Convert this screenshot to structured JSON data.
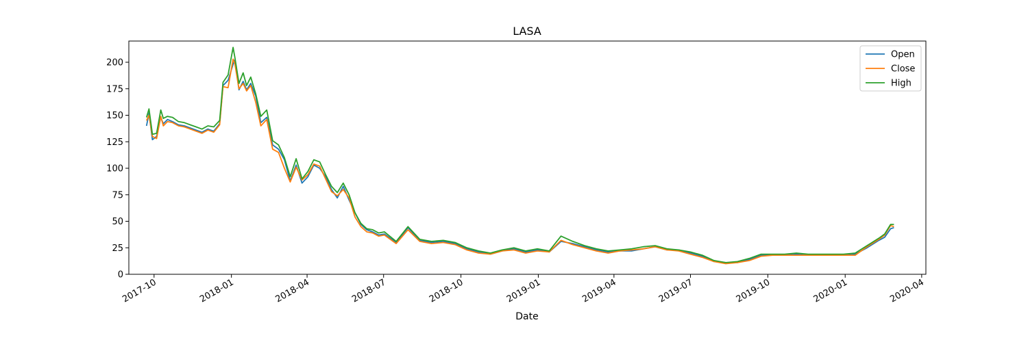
{
  "chart_data": {
    "type": "line",
    "title": "LASA",
    "xlabel": "Date",
    "ylabel": "",
    "xlim": [
      "2017-09-01",
      "2020-04-06"
    ],
    "ylim": [
      0,
      220
    ],
    "x_ticks": [
      "2017-10",
      "2018-01",
      "2018-04",
      "2018-07",
      "2018-10",
      "2019-01",
      "2019-04",
      "2019-07",
      "2019-10",
      "2020-01",
      "2020-04"
    ],
    "y_ticks": [
      0,
      25,
      50,
      75,
      100,
      125,
      150,
      175,
      200
    ],
    "grid": false,
    "legend": {
      "position": "top-right"
    },
    "x": [
      "2017-09-22",
      "2017-09-25",
      "2017-09-29",
      "2017-10-04",
      "2017-10-09",
      "2017-10-12",
      "2017-10-17",
      "2017-10-23",
      "2017-10-30",
      "2017-11-06",
      "2017-11-13",
      "2017-11-20",
      "2017-11-27",
      "2017-12-04",
      "2017-12-11",
      "2017-12-18",
      "2017-12-22",
      "2017-12-28",
      "2018-01-03",
      "2018-01-05",
      "2018-01-10",
      "2018-01-15",
      "2018-01-19",
      "2018-01-24",
      "2018-01-30",
      "2018-02-05",
      "2018-02-12",
      "2018-02-19",
      "2018-02-26",
      "2018-03-05",
      "2018-03-12",
      "2018-03-19",
      "2018-03-26",
      "2018-04-02",
      "2018-04-09",
      "2018-04-16",
      "2018-04-23",
      "2018-04-30",
      "2018-05-07",
      "2018-05-14",
      "2018-05-21",
      "2018-05-28",
      "2018-06-04",
      "2018-06-11",
      "2018-06-18",
      "2018-06-25",
      "2018-07-02",
      "2018-07-16",
      "2018-07-30",
      "2018-08-13",
      "2018-08-27",
      "2018-09-10",
      "2018-09-24",
      "2018-10-08",
      "2018-10-22",
      "2018-11-05",
      "2018-11-19",
      "2018-12-03",
      "2018-12-17",
      "2018-12-31",
      "2019-01-14",
      "2019-01-28",
      "2019-02-11",
      "2019-02-25",
      "2019-03-11",
      "2019-03-25",
      "2019-04-08",
      "2019-04-22",
      "2019-05-06",
      "2019-05-20",
      "2019-06-03",
      "2019-06-17",
      "2019-07-01",
      "2019-07-15",
      "2019-07-29",
      "2019-08-12",
      "2019-08-26",
      "2019-09-09",
      "2019-09-23",
      "2019-10-07",
      "2019-10-21",
      "2019-11-04",
      "2019-11-18",
      "2019-12-02",
      "2019-12-16",
      "2019-12-30",
      "2020-01-13",
      "2020-01-27",
      "2020-02-10",
      "2020-02-17",
      "2020-02-24",
      "2020-02-28"
    ],
    "series": [
      {
        "name": "Open",
        "color": "#1f77b4",
        "values": [
          140,
          152,
          127,
          130,
          148,
          142,
          146,
          144,
          141,
          140,
          138,
          136,
          134,
          137,
          135,
          142,
          178,
          183,
          198,
          202,
          174,
          182,
          174,
          180,
          168,
          143,
          148,
          122,
          118,
          108,
          88,
          103,
          86,
          92,
          103,
          100,
          92,
          80,
          72,
          83,
          70,
          58,
          47,
          42,
          40,
          37,
          38,
          30,
          44,
          32,
          30,
          31,
          29,
          24,
          21,
          19,
          22,
          24,
          21,
          23,
          21,
          31,
          29,
          26,
          23,
          21,
          22,
          22,
          24,
          26,
          23,
          23,
          20,
          17,
          12,
          11,
          11,
          14,
          18,
          18,
          18,
          19,
          18,
          18,
          18,
          18,
          19,
          25,
          32,
          35,
          43,
          44
        ]
      },
      {
        "name": "Close",
        "color": "#ff7f0e",
        "values": [
          145,
          150,
          130,
          128,
          149,
          140,
          144,
          143,
          140,
          139,
          137,
          135,
          133,
          136,
          134,
          141,
          177,
          176,
          203,
          199,
          175,
          180,
          173,
          178,
          162,
          140,
          146,
          118,
          115,
          100,
          87,
          101,
          89,
          94,
          104,
          102,
          90,
          78,
          74,
          80,
          72,
          54,
          45,
          40,
          39,
          36,
          37,
          29,
          42,
          31,
          29,
          30,
          28,
          23,
          20,
          19,
          22,
          23,
          20,
          22,
          21,
          32,
          28,
          25,
          22,
          20,
          22,
          23,
          24,
          26,
          23,
          22,
          19,
          16,
          12,
          10,
          11,
          13,
          17,
          18,
          18,
          18,
          18,
          18,
          18,
          18,
          18,
          26,
          33,
          37,
          46,
          45
        ]
      },
      {
        "name": "High",
        "color": "#2ca02c",
        "values": [
          148,
          156,
          132,
          133,
          155,
          147,
          149,
          148,
          144,
          143,
          141,
          139,
          137,
          140,
          139,
          145,
          181,
          188,
          214,
          205,
          180,
          190,
          178,
          186,
          170,
          149,
          155,
          126,
          122,
          110,
          92,
          109,
          90,
          97,
          108,
          106,
          94,
          83,
          77,
          86,
          75,
          58,
          48,
          43,
          42,
          39,
          40,
          31,
          45,
          33,
          31,
          32,
          30,
          25,
          22,
          20,
          23,
          25,
          22,
          24,
          22,
          36,
          31,
          27,
          24,
          22,
          23,
          24,
          26,
          27,
          24,
          23,
          21,
          18,
          13,
          11,
          12,
          15,
          19,
          19,
          19,
          20,
          19,
          19,
          19,
          19,
          20,
          27,
          34,
          38,
          47,
          47
        ]
      }
    ]
  }
}
